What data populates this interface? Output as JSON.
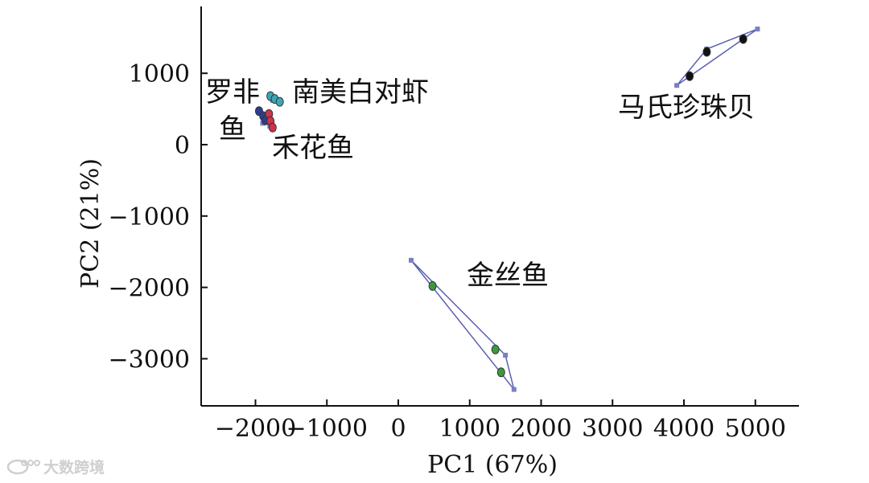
{
  "chart_data": {
    "type": "scatter",
    "title": "",
    "xlabel": "PC1 (67%)",
    "ylabel": "PC2 (21%)",
    "xlim": [
      -2600,
      5600
    ],
    "ylim": [
      -3650,
      1950
    ],
    "xticks": [
      -2000,
      -1000,
      0,
      1000,
      2000,
      3000,
      4000,
      5000
    ],
    "xtick_labels": [
      "−2000",
      "−1000",
      "0",
      "1000",
      "2000",
      "3000",
      "4000",
      "5000"
    ],
    "yticks": [
      1000,
      0,
      -1000,
      -2000,
      -3000
    ],
    "ytick_labels": [
      "1000",
      "0",
      "−1000",
      "−2000",
      "−3000"
    ],
    "grid": false,
    "groups": [
      {
        "label": "罗非鱼",
        "color": "#2a3f8f",
        "points": [
          [
            -1950,
            470
          ],
          [
            -1890,
            400
          ],
          [
            -1860,
            340
          ]
        ],
        "hull": [
          [
            -1960,
            480
          ],
          [
            -1850,
            330
          ],
          [
            -1900,
            300
          ],
          [
            -1960,
            480
          ]
        ]
      },
      {
        "label": "南美白对虾",
        "color": "#3aa7b5",
        "points": [
          [
            -1790,
            680
          ],
          [
            -1730,
            640
          ],
          [
            -1660,
            600
          ]
        ],
        "hull": [
          [
            -1800,
            700
          ],
          [
            -1650,
            590
          ],
          [
            -1760,
            620
          ],
          [
            -1800,
            700
          ]
        ]
      },
      {
        "label": "禾花鱼",
        "color": "#d0314b",
        "points": [
          [
            -1810,
            430
          ],
          [
            -1790,
            330
          ],
          [
            -1760,
            240
          ]
        ],
        "hull": [
          [
            -1820,
            450
          ],
          [
            -1750,
            220
          ],
          [
            -1800,
            260
          ],
          [
            -1820,
            450
          ]
        ]
      },
      {
        "label": "马氏珍珠贝",
        "color": "#111111",
        "points": [
          [
            4080,
            960
          ],
          [
            4320,
            1300
          ],
          [
            4830,
            1480
          ]
        ],
        "hull": [
          [
            3900,
            830
          ],
          [
            5030,
            1620
          ],
          [
            4320,
            1340
          ],
          [
            3900,
            830
          ]
        ]
      },
      {
        "label": "金丝鱼",
        "color": "#3c9a3c",
        "points": [
          [
            480,
            -1980
          ],
          [
            1360,
            -2870
          ],
          [
            1440,
            -3190
          ]
        ],
        "hull": [
          [
            180,
            -1620
          ],
          [
            1500,
            -2950
          ],
          [
            1620,
            -3430
          ],
          [
            180,
            -1620
          ]
        ]
      }
    ],
    "hull_color": "#5a5fb2"
  },
  "watermark": {
    "text": "大数跨境"
  }
}
